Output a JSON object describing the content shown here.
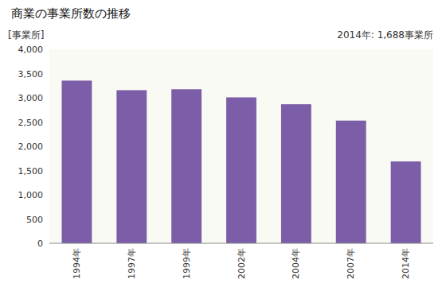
{
  "chart_data": {
    "type": "bar",
    "title": "商業の事業所数の推移",
    "ylabel": "[事業所]",
    "annotation": "2014年: 1,688事業所",
    "categories": [
      "1994年",
      "1997年",
      "1999年",
      "2002年",
      "2004年",
      "2007年",
      "2014年"
    ],
    "values": [
      3354,
      3157,
      3176,
      3009,
      2867,
      2530,
      1688
    ],
    "color": "#7B5EA7",
    "ylim": [
      0,
      4000
    ],
    "yticks": [
      0,
      500,
      {
        "value": 1000,
        "label": "1,000"
      },
      {
        "value": 1500,
        "label": "1,500"
      },
      {
        "value": 2000,
        "label": "2,000"
      },
      {
        "value": 2500,
        "label": "2,500"
      },
      {
        "value": 3000,
        "label": "3,000"
      },
      {
        "value": 3500,
        "label": "3,500"
      },
      {
        "value": 4000,
        "label": "4,000"
      }
    ],
    "grid": false
  }
}
